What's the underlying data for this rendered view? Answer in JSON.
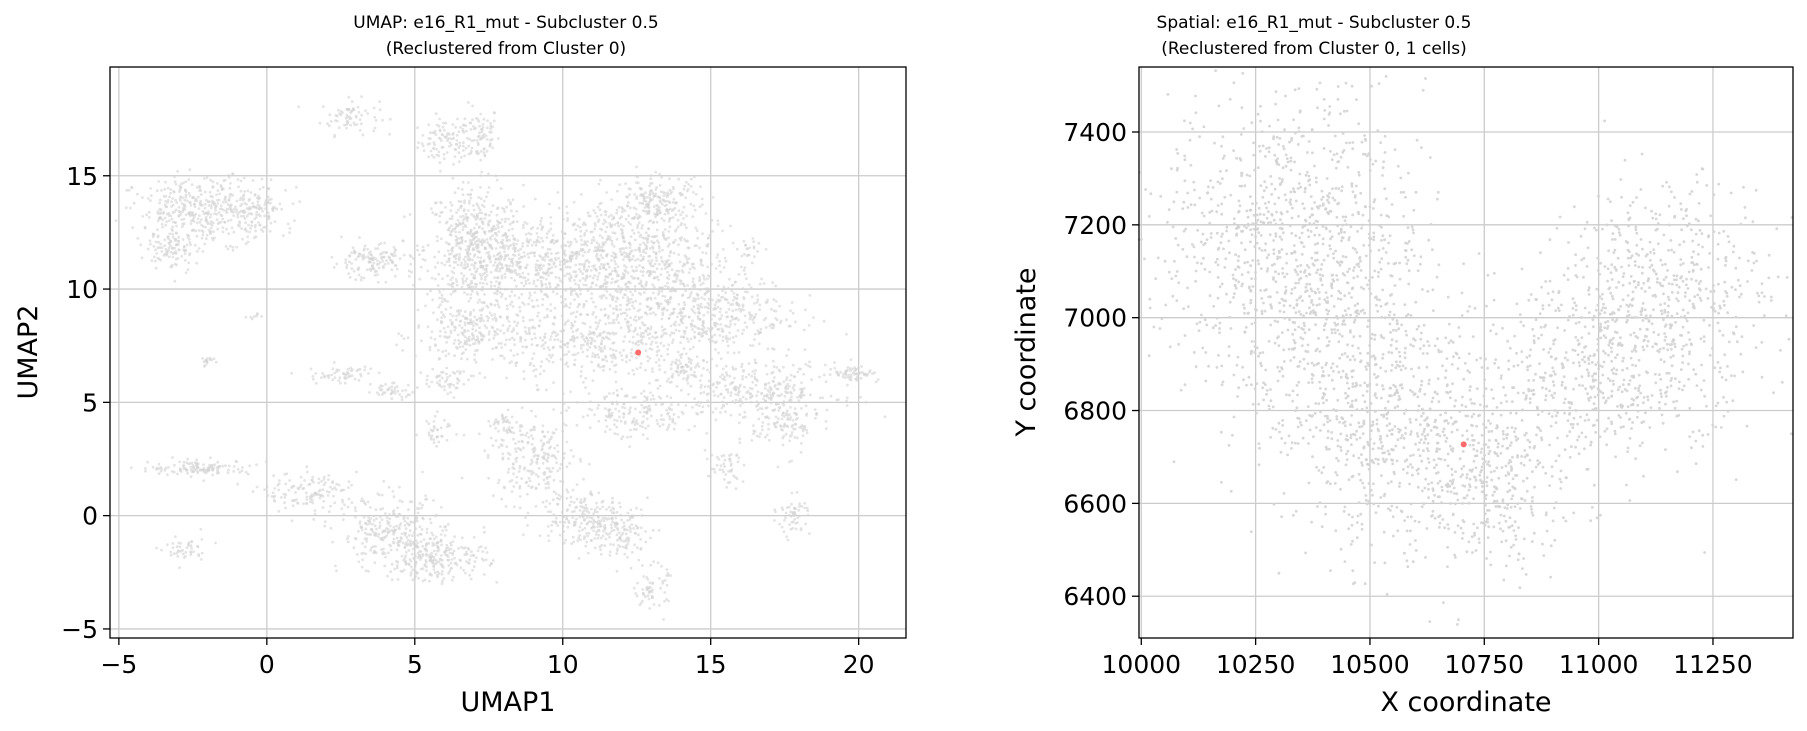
{
  "chart_data": [
    {
      "type": "scatter",
      "title_line1": "UMAP: e16_R1_mut - Subcluster 0.5",
      "title_line2": "(Reclustered from Cluster 0)",
      "xlabel": "UMAP1",
      "ylabel": "UMAP2",
      "xlim": [
        -5.3,
        21.6
      ],
      "ylim": [
        -5.4,
        19.8
      ],
      "xticks": [
        -5,
        0,
        5,
        10,
        15,
        20
      ],
      "yticks": [
        -5,
        0,
        5,
        10,
        15
      ],
      "xtick_labels": [
        "−5",
        "0",
        "5",
        "10",
        "15",
        "20"
      ],
      "ytick_labels": [
        "−5",
        "0",
        "5",
        "10",
        "15"
      ],
      "grid": true,
      "series": [
        {
          "role": "background",
          "color": "#d3d3d3",
          "regions": [
            {
              "cx": 6.0,
              "cy": 16.5,
              "rx": 0.8,
              "ry": 0.9,
              "n": 90
            },
            {
              "cx": 7.2,
              "cy": 16.8,
              "rx": 0.6,
              "ry": 1.2,
              "n": 80
            },
            {
              "cx": 2.8,
              "cy": 17.6,
              "rx": 0.9,
              "ry": 0.7,
              "n": 70
            },
            {
              "cx": 7.0,
              "cy": 11.8,
              "rx": 1.5,
              "ry": 2.5,
              "n": 500
            },
            {
              "cx": 9.0,
              "cy": 11.0,
              "rx": 2.5,
              "ry": 2.0,
              "n": 400
            },
            {
              "cx": 7.0,
              "cy": 8.0,
              "rx": 1.8,
              "ry": 1.4,
              "n": 240
            },
            {
              "cx": 12.0,
              "cy": 11.5,
              "rx": 2.8,
              "ry": 2.3,
              "n": 650
            },
            {
              "cx": 14.5,
              "cy": 9.0,
              "rx": 2.8,
              "ry": 1.8,
              "n": 520
            },
            {
              "cx": 11.0,
              "cy": 7.5,
              "rx": 2.5,
              "ry": 1.5,
              "n": 320
            },
            {
              "cx": 16.5,
              "cy": 5.5,
              "rx": 2.5,
              "ry": 1.2,
              "n": 300
            },
            {
              "cx": 12.5,
              "cy": 4.5,
              "rx": 1.8,
              "ry": 1.1,
              "n": 170
            },
            {
              "cx": 17.5,
              "cy": 4.0,
              "rx": 1.0,
              "ry": 1.2,
              "n": 100
            },
            {
              "cx": -2.0,
              "cy": 13.5,
              "rx": 2.2,
              "ry": 1.3,
              "n": 420
            },
            {
              "cx": -3.2,
              "cy": 11.8,
              "rx": 0.8,
              "ry": 0.9,
              "n": 100
            },
            {
              "cx": -0.5,
              "cy": 13.5,
              "rx": 0.7,
              "ry": 0.8,
              "n": 60
            },
            {
              "cx": 3.5,
              "cy": 11.2,
              "rx": 1.2,
              "ry": 0.7,
              "n": 130
            },
            {
              "cx": 13.2,
              "cy": 13.8,
              "rx": 1.3,
              "ry": 1.1,
              "n": 190
            },
            {
              "cx": 19.8,
              "cy": 6.3,
              "rx": 0.8,
              "ry": 0.3,
              "n": 60
            },
            {
              "cx": -2.2,
              "cy": 2.1,
              "rx": 1.6,
              "ry": 0.3,
              "n": 120
            },
            {
              "cx": 1.5,
              "cy": 1.0,
              "rx": 1.5,
              "ry": 0.8,
              "n": 130
            },
            {
              "cx": 4.2,
              "cy": -0.8,
              "rx": 1.6,
              "ry": 1.5,
              "n": 260
            },
            {
              "cx": 5.8,
              "cy": -1.8,
              "rx": 1.5,
              "ry": 1.0,
              "n": 230
            },
            {
              "cx": 9.0,
              "cy": 2.5,
              "rx": 1.4,
              "ry": 1.6,
              "n": 210
            },
            {
              "cx": 10.5,
              "cy": 0.0,
              "rx": 1.3,
              "ry": 1.2,
              "n": 180
            },
            {
              "cx": 12.0,
              "cy": -0.8,
              "rx": 0.9,
              "ry": 1.1,
              "n": 120
            },
            {
              "cx": 13.0,
              "cy": -3.2,
              "rx": 0.5,
              "ry": 0.9,
              "n": 60
            },
            {
              "cx": 17.8,
              "cy": 0.0,
              "rx": 0.5,
              "ry": 0.8,
              "n": 55
            },
            {
              "cx": -2.8,
              "cy": -1.5,
              "rx": 0.7,
              "ry": 0.6,
              "n": 45
            },
            {
              "cx": 4.2,
              "cy": 5.5,
              "rx": 0.8,
              "ry": 0.3,
              "n": 40
            },
            {
              "cx": 2.5,
              "cy": 6.2,
              "rx": 1.0,
              "ry": 0.4,
              "n": 55
            },
            {
              "cx": 5.8,
              "cy": 3.8,
              "rx": 0.5,
              "ry": 0.6,
              "n": 35
            },
            {
              "cx": 8.0,
              "cy": 4.0,
              "rx": 0.5,
              "ry": 0.6,
              "n": 35
            },
            {
              "cx": -2.0,
              "cy": 6.8,
              "rx": 0.4,
              "ry": 0.2,
              "n": 15
            },
            {
              "cx": -0.4,
              "cy": 8.8,
              "rx": 0.2,
              "ry": 0.2,
              "n": 8
            },
            {
              "cx": 16.3,
              "cy": 11.8,
              "rx": 0.4,
              "ry": 0.4,
              "n": 20
            },
            {
              "cx": 14.0,
              "cy": 6.5,
              "rx": 0.8,
              "ry": 0.6,
              "n": 60
            },
            {
              "cx": 15.5,
              "cy": 2.0,
              "rx": 0.6,
              "ry": 0.7,
              "n": 45
            },
            {
              "cx": 6.0,
              "cy": 6.0,
              "rx": 0.6,
              "ry": 0.5,
              "n": 45
            }
          ]
        },
        {
          "role": "highlight",
          "color": "#ff6b6b",
          "x": [
            12.55
          ],
          "y": [
            7.2
          ]
        }
      ]
    },
    {
      "type": "scatter",
      "title_line1": "Spatial: e16_R1_mut - Subcluster 0.5",
      "title_line2": "(Reclustered from Cluster 0, 1 cells)",
      "xlabel": "X coordinate",
      "ylabel": "Y coordinate",
      "xlim": [
        9995,
        11425
      ],
      "ylim": [
        6310,
        7540
      ],
      "xticks": [
        10000,
        10250,
        10500,
        10750,
        11000,
        11250
      ],
      "yticks": [
        6400,
        6600,
        6800,
        7000,
        7200,
        7400
      ],
      "xtick_labels": [
        "10000",
        "10250",
        "10500",
        "10750",
        "11000",
        "11250"
      ],
      "ytick_labels": [
        "6400",
        "6600",
        "6800",
        "7000",
        "7200",
        "7400"
      ],
      "grid": true,
      "series": [
        {
          "role": "background",
          "color": "#d3d3d3",
          "regions": [
            {
              "cx": 10330,
              "cy": 7180,
              "rx": 260,
              "ry": 280,
              "n": 900
            },
            {
              "cx": 10440,
              "cy": 6880,
              "rx": 240,
              "ry": 260,
              "n": 560
            },
            {
              "cx": 10620,
              "cy": 6700,
              "rx": 210,
              "ry": 210,
              "n": 440
            },
            {
              "cx": 10780,
              "cy": 6620,
              "rx": 120,
              "ry": 160,
              "n": 190
            },
            {
              "cx": 10950,
              "cy": 6860,
              "rx": 200,
              "ry": 220,
              "n": 460
            },
            {
              "cx": 11150,
              "cy": 7040,
              "rx": 200,
              "ry": 230,
              "n": 580
            }
          ]
        },
        {
          "role": "highlight",
          "color": "#ff6b6b",
          "x": [
            10705
          ],
          "y": [
            6727
          ]
        }
      ]
    }
  ]
}
